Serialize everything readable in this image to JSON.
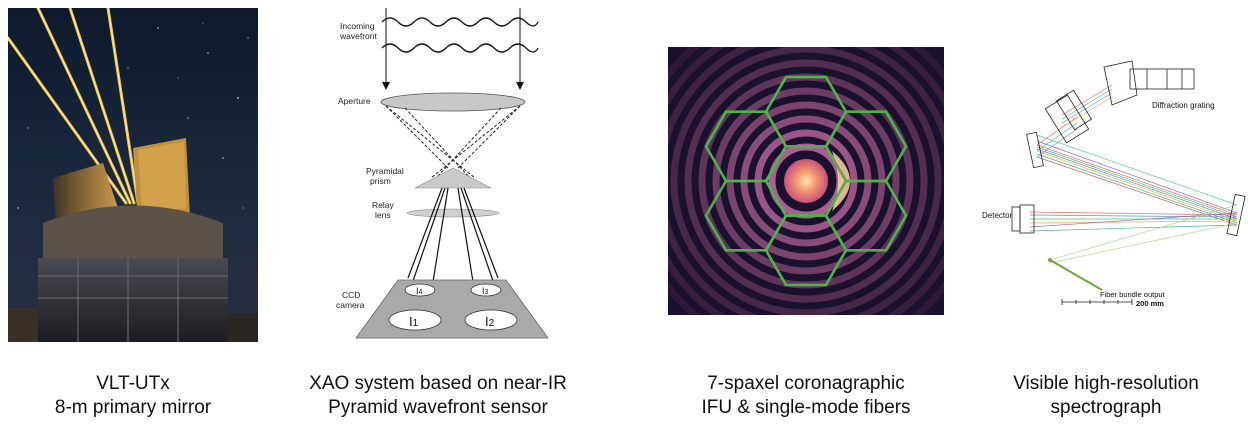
{
  "panels": [
    {
      "caption_line1": "VLT-UTx",
      "caption_line2": "8-m primary mirror"
    },
    {
      "caption_line1": "XAO system based on near-IR",
      "caption_line2": "Pyramid wavefront sensor",
      "labels": {
        "incoming1": "Incoming",
        "incoming2": "wavefront",
        "aperture": "Aperture",
        "prism1": "Pyramidal",
        "prism2": "prism",
        "relay1": "Relay",
        "relay2": "lens",
        "ccd1": "CCD",
        "ccd2": "camera",
        "i1": "I",
        "i1sub": "1",
        "i2": "I",
        "i2sub": "2",
        "i3": "I",
        "i3sub": "3",
        "i4": "I",
        "i4sub": "4"
      }
    },
    {
      "caption_line1": "7-spaxel coronagraphic",
      "caption_line2": "IFU & single-mode fibers"
    },
    {
      "caption_line1": "Visible high-resolution",
      "caption_line2": "spectrograph",
      "labels": {
        "grating": "Diffraction grating",
        "detector": "Detector",
        "fiber": "Fiber bundle output",
        "scale": "200 mm"
      }
    }
  ]
}
